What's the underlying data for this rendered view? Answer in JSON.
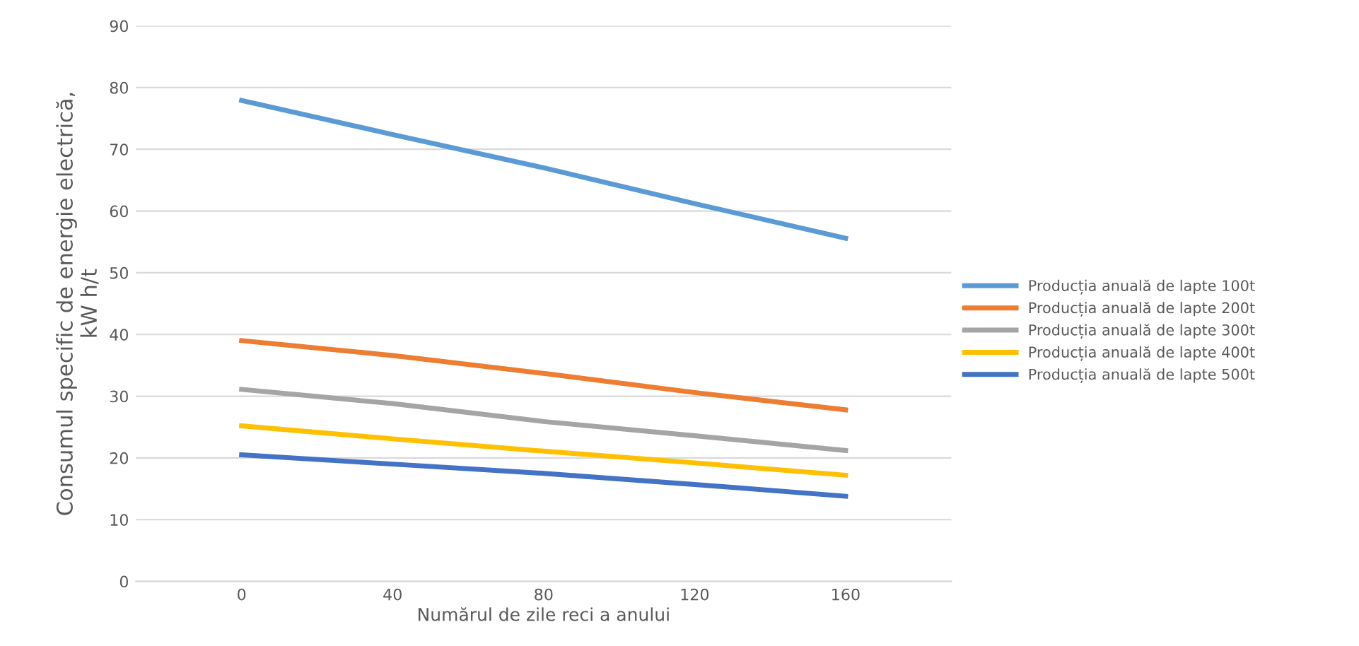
{
  "chart_data": {
    "type": "line",
    "xlabel": "Numărul de zile reci a anului",
    "ylabel": "Consumul specific de energie electrică,\nkW h/t",
    "categories": [
      "0",
      "40",
      "80",
      "120",
      "160"
    ],
    "series": [
      {
        "name": "Producția anuală de lapte 100t",
        "color": "#5b9bd5",
        "values": [
          77.9,
          72.4,
          67.0,
          61.2,
          55.6
        ]
      },
      {
        "name": "Producția anuală de lapte 200t",
        "color": "#ed7d31",
        "values": [
          39.0,
          36.6,
          33.7,
          30.6,
          27.8
        ]
      },
      {
        "name": "Producția anuală de lapte 300t",
        "color": "#a5a5a5",
        "values": [
          31.1,
          28.8,
          25.9,
          23.6,
          21.2
        ]
      },
      {
        "name": "Producția anuală de lapte 400t",
        "color": "#ffc000",
        "values": [
          25.2,
          23.1,
          21.1,
          19.2,
          17.2
        ]
      },
      {
        "name": "Producția anuală de lapte 500t",
        "color": "#4472c4",
        "values": [
          20.5,
          19.0,
          17.5,
          15.7,
          13.8
        ]
      }
    ],
    "ylim": [
      0,
      90
    ],
    "yticks": [
      0,
      10,
      20,
      30,
      40,
      50,
      60,
      70,
      80,
      90
    ],
    "grid": "y",
    "legend": "right",
    "marker": "none",
    "line_style": "solid"
  }
}
